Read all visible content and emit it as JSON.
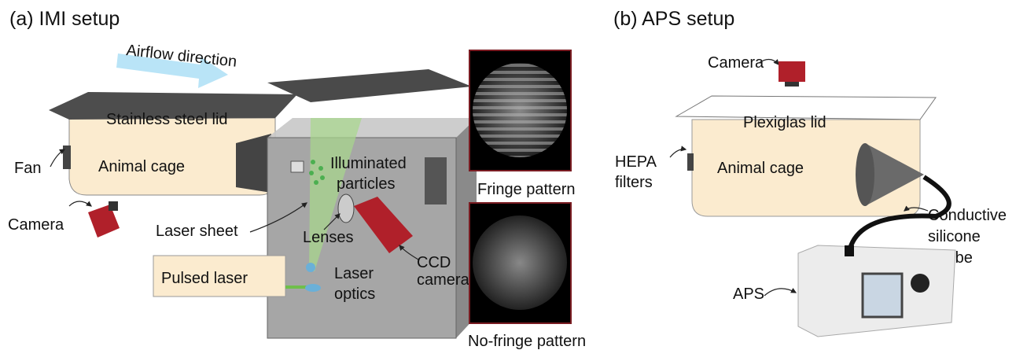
{
  "panel_a": {
    "title": "(a) IMI setup",
    "airflow": "Airflow direction",
    "lid": "Stainless steel lid",
    "fan": "Fan",
    "cage": "Animal cage",
    "camera": "Camera",
    "laser_sheet": "Laser sheet",
    "pulsed_laser": "Pulsed laser",
    "particles": [
      "Illuminated",
      "particles"
    ],
    "lenses": "Lenses",
    "laser_optics": [
      "Laser",
      "optics"
    ],
    "ccd_camera": [
      "CCD",
      "camera"
    ],
    "fringe": "Fringe pattern",
    "no_fringe": "No-fringe pattern"
  },
  "panel_b": {
    "title": "(b) APS setup",
    "camera": "Camera",
    "lid": "Plexiglas lid",
    "hepa": [
      "HEPA",
      "filters"
    ],
    "cage": "Animal cage",
    "tube": [
      "Conductive",
      "silicone",
      "tube"
    ],
    "aps": "APS"
  }
}
